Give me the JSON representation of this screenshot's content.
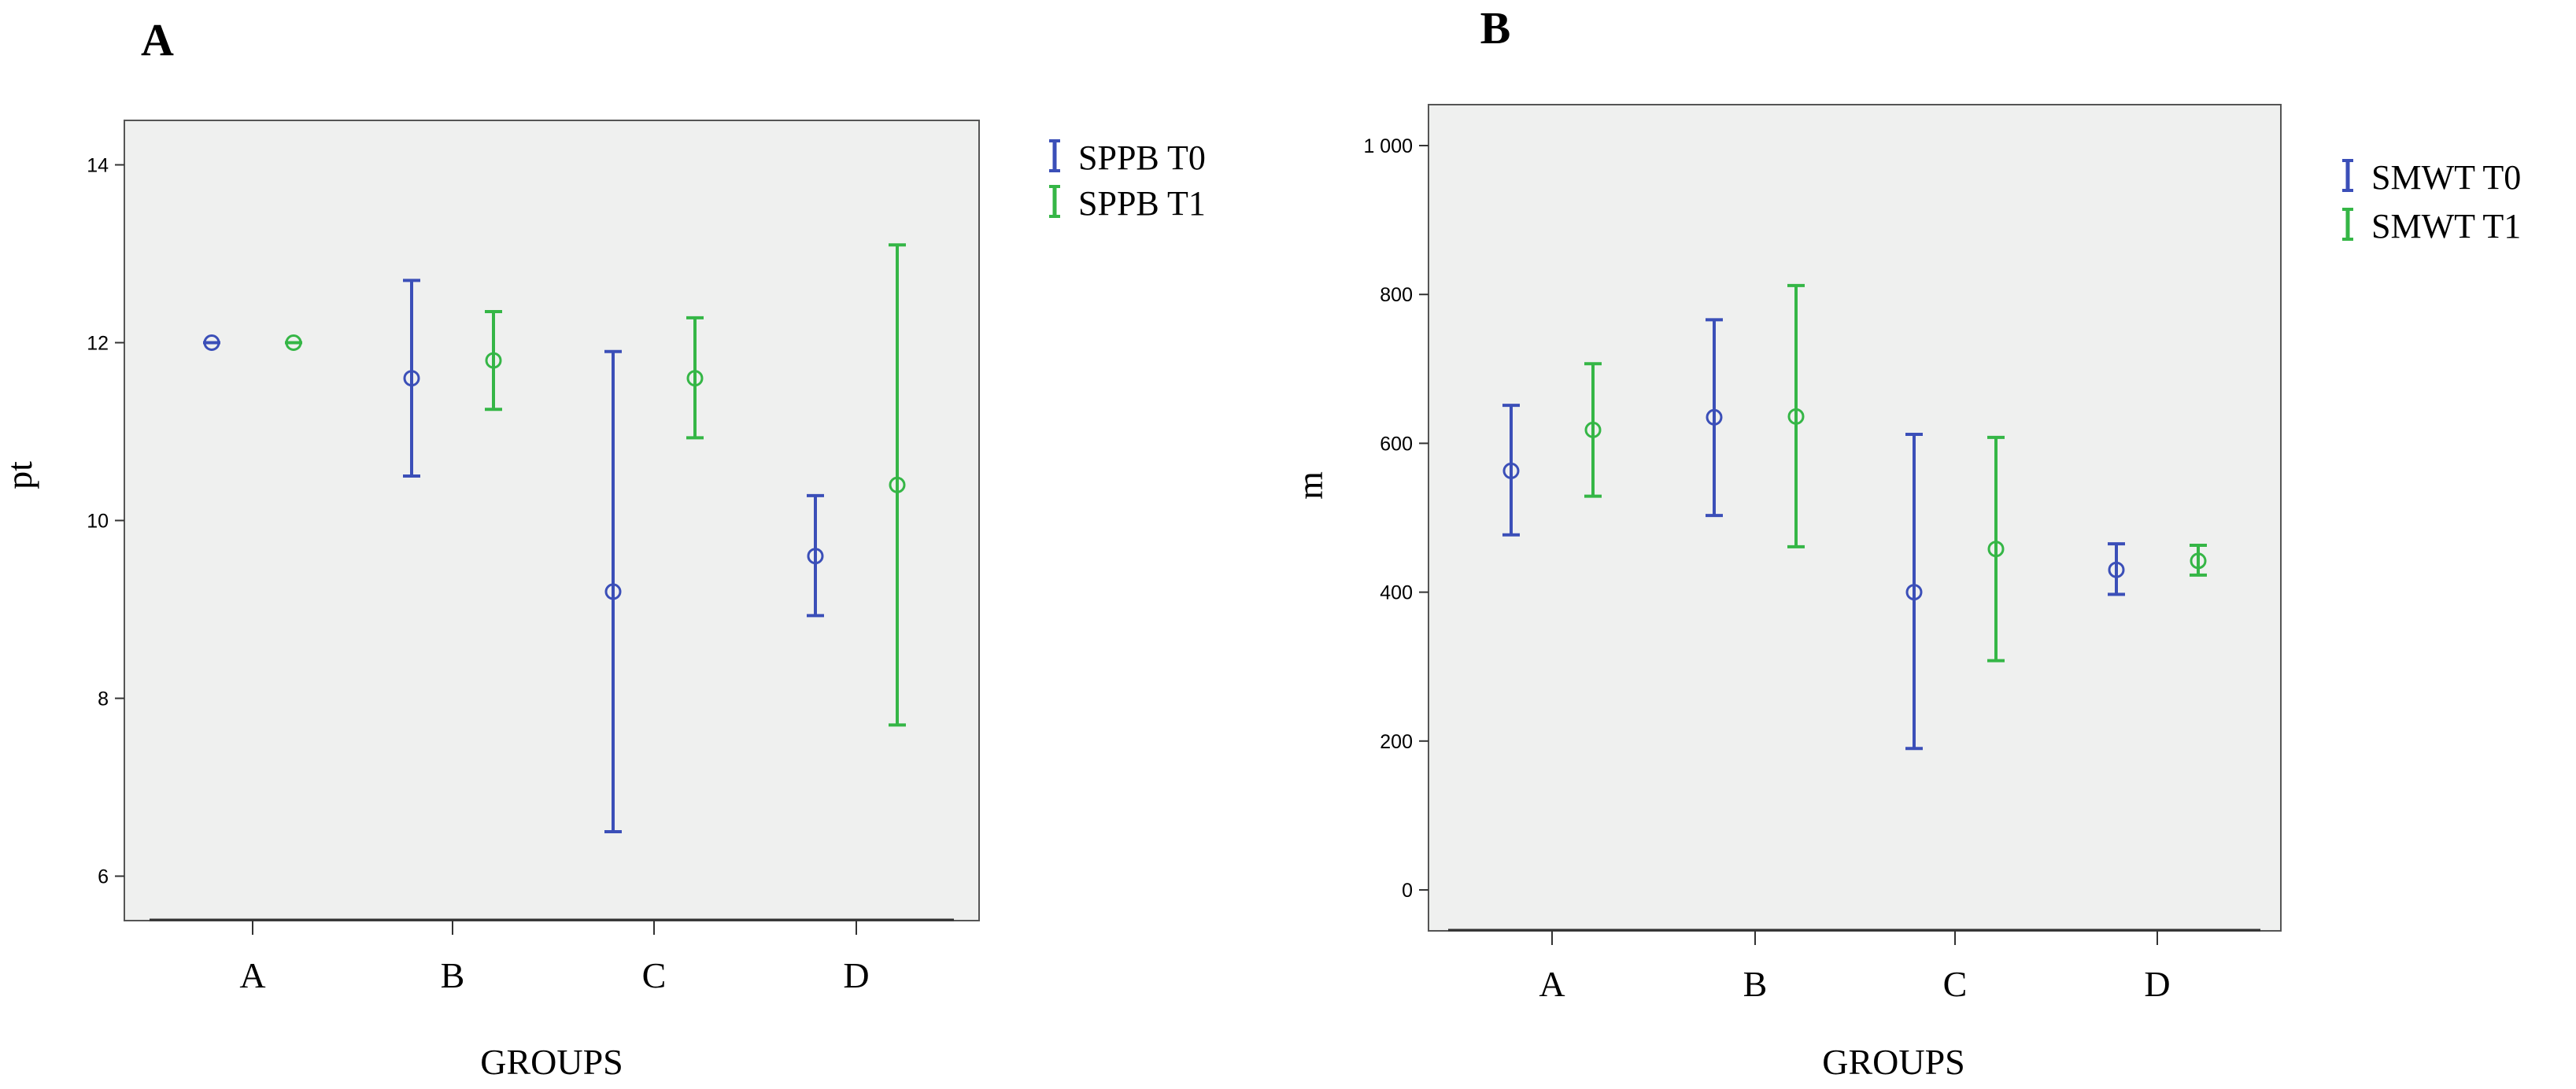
{
  "chart_data": [
    {
      "type": "errorbar",
      "panel_label": "A",
      "xlabel": "GROUPS",
      "ylabel": "pt",
      "categories": [
        "A",
        "B",
        "C",
        "D"
      ],
      "ylim": [
        5.5,
        14.5
      ],
      "yticks": [
        6,
        8,
        10,
        12,
        14
      ],
      "ytick_labels": [
        "6",
        "8",
        "10",
        "12",
        "14"
      ],
      "grid": false,
      "legend_position": "right-top",
      "series": [
        {
          "name": "SPPB T0",
          "color": "#3b4fb8",
          "means": [
            12.0,
            11.6,
            9.2,
            9.6
          ],
          "lower": [
            12.0,
            10.5,
            6.5,
            8.93
          ],
          "upper": [
            12.0,
            12.7,
            11.9,
            10.28
          ]
        },
        {
          "name": "SPPB T1",
          "color": "#35b646",
          "means": [
            12.0,
            11.8,
            11.6,
            10.4
          ],
          "lower": [
            12.0,
            11.25,
            10.93,
            7.7
          ],
          "upper": [
            12.0,
            12.35,
            12.28,
            13.1
          ]
        }
      ]
    },
    {
      "type": "errorbar",
      "panel_label": "B",
      "xlabel": "GROUPS",
      "ylabel": "m",
      "categories": [
        "A",
        "B",
        "C",
        "D"
      ],
      "ylim": [
        -55,
        1055
      ],
      "yticks": [
        0,
        200,
        400,
        600,
        800,
        1000
      ],
      "ytick_labels": [
        "0",
        "200",
        "400",
        "600",
        "800",
        "1 000"
      ],
      "grid": false,
      "legend_position": "right-top",
      "series": [
        {
          "name": "SMWT T0",
          "color": "#3b4fb8",
          "means": [
            563,
            635,
            400,
            430
          ],
          "lower": [
            477,
            503,
            190,
            397
          ],
          "upper": [
            651,
            766,
            612,
            465
          ]
        },
        {
          "name": "SMWT T1",
          "color": "#35b646",
          "means": [
            618,
            636,
            458,
            442
          ],
          "lower": [
            529,
            461,
            308,
            423
          ],
          "upper": [
            707,
            812,
            608,
            463
          ]
        }
      ]
    }
  ]
}
